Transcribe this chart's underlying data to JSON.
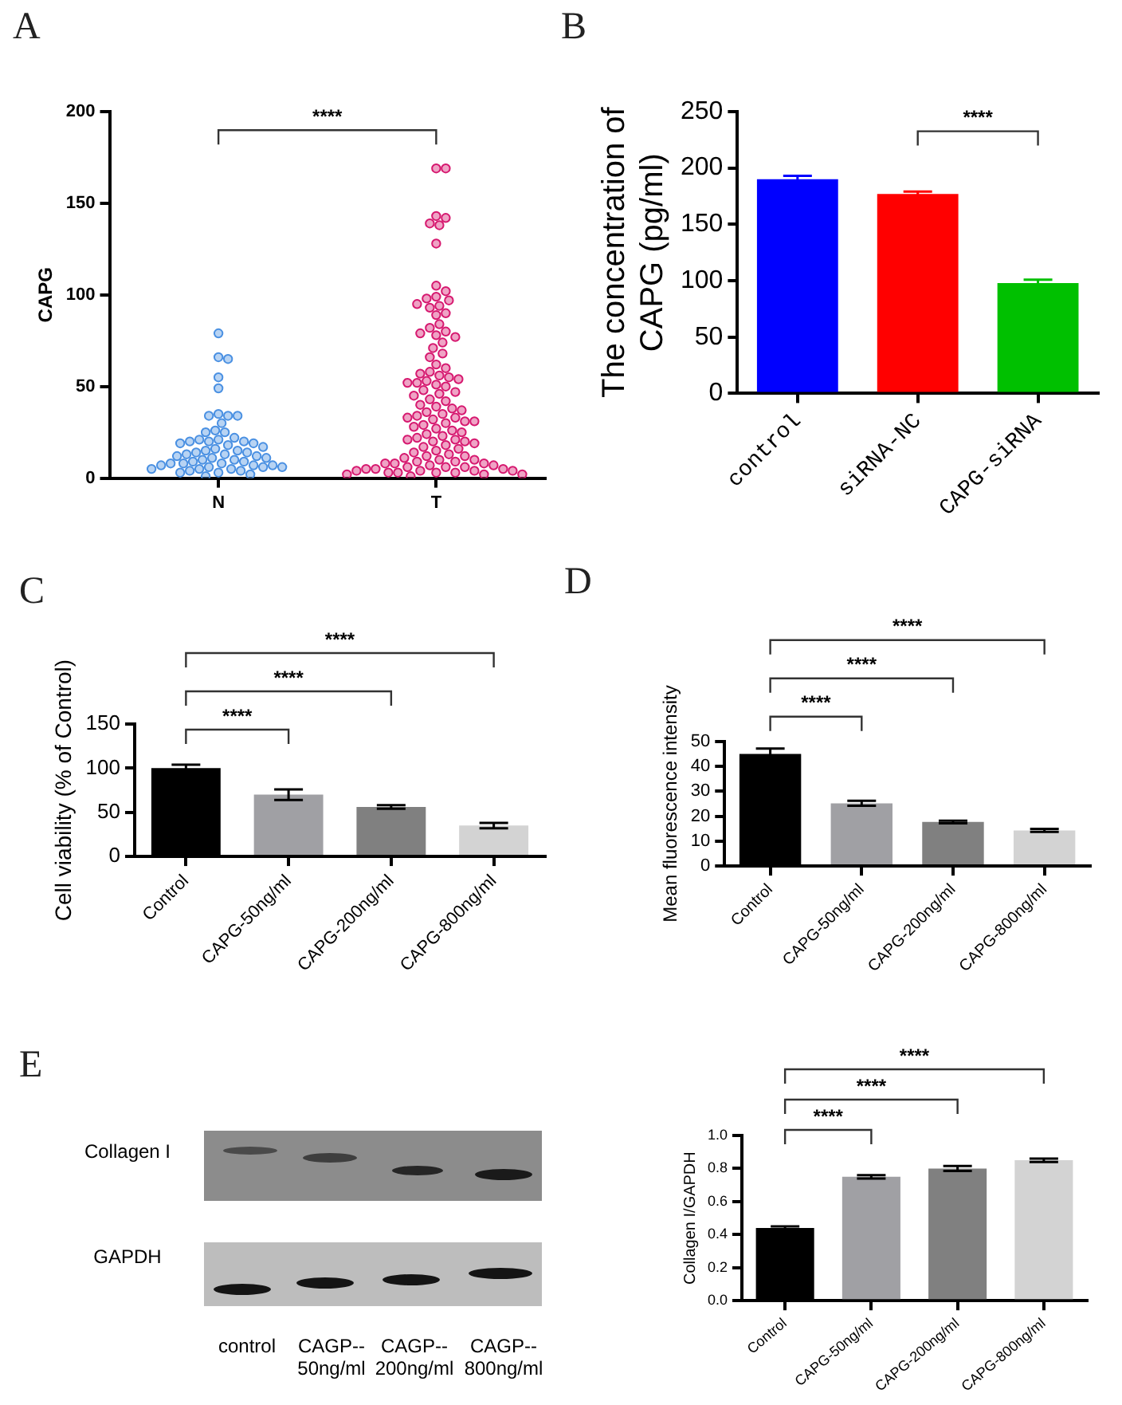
{
  "chart_data": [
    {
      "type": "scatter",
      "categories": [
        "N",
        "T"
      ],
      "ylabel": "CAPG",
      "ylim": [
        0,
        200
      ],
      "yticks": [
        0,
        50,
        100,
        150,
        200
      ],
      "grid": false,
      "legend": false,
      "marker": "circle",
      "annotations": [
        "A",
        "****"
      ],
      "series": [
        {
          "color": "#4a90e2",
          "x": [
            "N",
            "N",
            "N",
            "N",
            "N",
            "N",
            "N",
            "N",
            "N",
            "N",
            "N",
            "N",
            "N",
            "N",
            "N",
            "N",
            "N",
            "N",
            "N",
            "N",
            "N",
            "N",
            "N",
            "N",
            "N",
            "N",
            "N",
            "N",
            "N",
            "N",
            "N",
            "N",
            "N",
            "N",
            "N",
            "N",
            "N",
            "N",
            "N",
            "N",
            "N",
            "N",
            "N",
            "N",
            "N",
            "N",
            "N",
            "N",
            "N",
            "N",
            "N",
            "N",
            "N",
            "N",
            "N",
            "N"
          ],
          "values": [
            79,
            66,
            65,
            55,
            49,
            35,
            34,
            34,
            34,
            30,
            26,
            25,
            25,
            22,
            21,
            21,
            20,
            20,
            20,
            19,
            19,
            18,
            17,
            16,
            15,
            15,
            14,
            14,
            13,
            13,
            12,
            12,
            11,
            11,
            10,
            10,
            9,
            9,
            8,
            8,
            8,
            7,
            7,
            7,
            6,
            6,
            6,
            5,
            5,
            5,
            4,
            4,
            3,
            3,
            2,
            1
          ]
        },
        {
          "color": "#d6186f",
          "x": [
            "T",
            "T",
            "T",
            "T",
            "T",
            "T",
            "T",
            "T",
            "T",
            "T",
            "T",
            "T",
            "T",
            "T",
            "T",
            "T",
            "T",
            "T",
            "T",
            "T",
            "T",
            "T",
            "T",
            "T",
            "T",
            "T",
            "T",
            "T",
            "T",
            "T",
            "T",
            "T",
            "T",
            "T",
            "T",
            "T",
            "T",
            "T",
            "T",
            "T",
            "T",
            "T",
            "T",
            "T",
            "T",
            "T",
            "T",
            "T",
            "T",
            "T",
            "T",
            "T",
            "T",
            "T",
            "T",
            "T",
            "T",
            "T",
            "T",
            "T",
            "T",
            "T",
            "T",
            "T",
            "T",
            "T",
            "T",
            "T",
            "T",
            "T",
            "T",
            "T",
            "T",
            "T",
            "T",
            "T",
            "T",
            "T",
            "T",
            "T",
            "T",
            "T",
            "T",
            "T",
            "T",
            "T",
            "T",
            "T",
            "T",
            "T",
            "T",
            "T",
            "T",
            "T",
            "T",
            "T",
            "T",
            "T",
            "T",
            "T",
            "T",
            "T",
            "T",
            "T",
            "T",
            "T",
            "T"
          ],
          "values": [
            169,
            169,
            143,
            142,
            139,
            138,
            128,
            105,
            102,
            99,
            98,
            97,
            95,
            94,
            93,
            90,
            89,
            84,
            82,
            80,
            79,
            78,
            77,
            74,
            71,
            68,
            66,
            62,
            60,
            58,
            57,
            56,
            55,
            54,
            53,
            52,
            52,
            51,
            50,
            48,
            47,
            46,
            45,
            43,
            42,
            40,
            39,
            38,
            37,
            36,
            35,
            34,
            33,
            33,
            32,
            31,
            31,
            30,
            29,
            28,
            27,
            26,
            25,
            24,
            23,
            22,
            21,
            21,
            20,
            20,
            19,
            18,
            17,
            16,
            15,
            14,
            13,
            12,
            12,
            11,
            10,
            10,
            9,
            9,
            8,
            8,
            8,
            7,
            7,
            6,
            6,
            6,
            5,
            5,
            5,
            4,
            4,
            4,
            4,
            3,
            3,
            3,
            3,
            2,
            2,
            2,
            1
          ]
        }
      ]
    },
    {
      "type": "bar",
      "categories": [
        "control",
        "siRNA-NC",
        "CAPG-siRNA"
      ],
      "values": [
        190,
        177,
        98
      ],
      "errors": [
        3,
        2,
        3
      ],
      "colors": [
        "#0000ff",
        "#ff0000",
        "#00c000"
      ],
      "ylabel": "The concentration of CAPG (pg/ml)",
      "ylim": [
        0,
        250
      ],
      "yticks": [
        0,
        50,
        100,
        150,
        200,
        250
      ],
      "grid": false,
      "legend": false,
      "annotations": [
        "B",
        "****"
      ]
    },
    {
      "type": "bar",
      "categories": [
        "Control",
        "CAPG-50ng/ml",
        "CAPG-200ng/ml",
        "CAPG-800ng/ml"
      ],
      "values": [
        100,
        70,
        56,
        35
      ],
      "errors": [
        4,
        6,
        2,
        3
      ],
      "colors": [
        "#000000",
        "#a0a0a4",
        "#808080",
        "#d3d3d3"
      ],
      "ylabel": "Cell viability (% of Control)",
      "ylim": [
        0,
        150
      ],
      "yticks": [
        0,
        50,
        100,
        150
      ],
      "grid": false,
      "legend": false,
      "annotations": [
        "C",
        "****",
        "****",
        "****"
      ]
    },
    {
      "type": "bar",
      "categories": [
        "Control",
        "CAPG-50ng/ml",
        "CAPG-200ng/ml",
        "CAPG-800ng/ml"
      ],
      "values": [
        45,
        25.2,
        17.7,
        14.3
      ],
      "errors": [
        2.2,
        1,
        0.5,
        0.6
      ],
      "colors": [
        "#000000",
        "#a0a0a4",
        "#808080",
        "#d3d3d3"
      ],
      "ylabel": "Mean fluorescence intensity",
      "ylim": [
        0,
        50
      ],
      "yticks": [
        0,
        10,
        20,
        30,
        40,
        50
      ],
      "grid": false,
      "legend": false,
      "annotations": [
        "D",
        "****",
        "****",
        "****"
      ]
    },
    {
      "type": "other",
      "annotations": [
        "E",
        "Collagen I",
        "GAPDH",
        "control",
        "CAGP-- 50ng/ml",
        "CAGP-- 200ng/ml",
        "CAGP-- 800ng/ml"
      ]
    },
    {
      "type": "bar",
      "categories": [
        "Control",
        "CAPG-50ng/ml",
        "CAPG-200ng/ml",
        "CAPG-800ng/ml"
      ],
      "values": [
        0.44,
        0.75,
        0.8,
        0.85
      ],
      "errors": [
        0.01,
        0.01,
        0.015,
        0.01
      ],
      "colors": [
        "#000000",
        "#a0a0a4",
        "#808080",
        "#d3d3d3"
      ],
      "ylabel": "Collagen I/GAPDH",
      "ylim": [
        0,
        1
      ],
      "yticks": [
        {
          "value": 0,
          "label": "0.0"
        },
        {
          "value": 0.2,
          "label": "0.2"
        },
        {
          "value": 0.4,
          "label": "0.4"
        },
        {
          "value": 0.6,
          "label": "0.6"
        },
        {
          "value": 0.8,
          "label": "0.8"
        },
        {
          "value": 1,
          "label": "1.0"
        }
      ],
      "grid": false,
      "legend": false,
      "annotations": [
        "****",
        "****",
        "****"
      ]
    }
  ]
}
